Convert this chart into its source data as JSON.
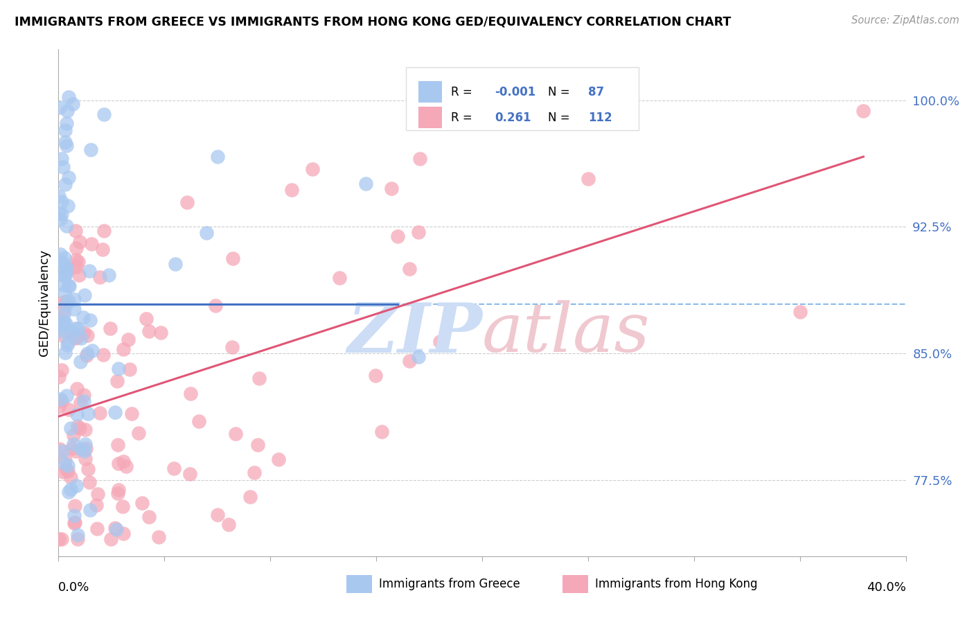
{
  "title": "IMMIGRANTS FROM GREECE VS IMMIGRANTS FROM HONG KONG GED/EQUIVALENCY CORRELATION CHART",
  "source": "Source: ZipAtlas.com",
  "ylabel": "GED/Equivalency",
  "y_ticks": [
    77.5,
    85.0,
    92.5,
    100.0
  ],
  "y_tick_labels": [
    "77.5%",
    "85.0%",
    "92.5%",
    "100.0%"
  ],
  "xmin": 0.0,
  "xmax": 40.0,
  "ymin": 73.0,
  "ymax": 103.0,
  "dashed_line_y": 89.0,
  "color_greece": "#a8c8f0",
  "color_hongkong": "#f5a8b8",
  "color_line_greece": "#4472c4",
  "color_line_hongkong": "#e05575",
  "color_dashed": "#7fb3e8",
  "color_grid": "#cccccc",
  "color_ytick": "#4472c4",
  "watermark_zip_color": "#ccddf5",
  "watermark_atlas_color": "#f0c8d0"
}
